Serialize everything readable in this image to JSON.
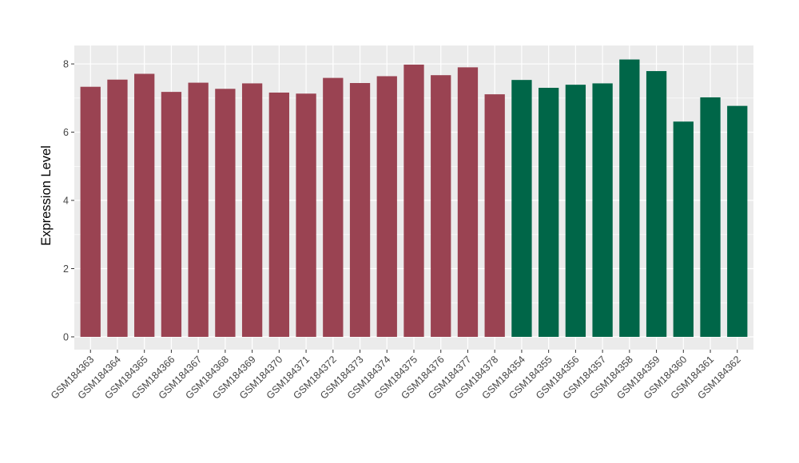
{
  "chart_data": {
    "type": "bar",
    "ylabel": "Expression Level",
    "xlabel": "",
    "categories": [
      "GSM184363",
      "GSM184364",
      "GSM184365",
      "GSM184366",
      "GSM184367",
      "GSM184368",
      "GSM184369",
      "GSM184370",
      "GSM184371",
      "GSM184372",
      "GSM184373",
      "GSM184374",
      "GSM184375",
      "GSM184376",
      "GSM184377",
      "GSM184378",
      "GSM184354",
      "GSM184355",
      "GSM184356",
      "GSM184357",
      "GSM184358",
      "GSM184359",
      "GSM184360",
      "GSM184361",
      "GSM184362"
    ],
    "values": [
      7.33,
      7.54,
      7.71,
      7.18,
      7.45,
      7.27,
      7.43,
      7.16,
      7.13,
      7.59,
      7.44,
      7.64,
      7.98,
      7.67,
      7.9,
      7.11,
      7.53,
      7.3,
      7.39,
      7.43,
      8.13,
      7.79,
      6.31,
      7.02,
      6.77
    ],
    "groups": [
      "maroon",
      "maroon",
      "maroon",
      "maroon",
      "maroon",
      "maroon",
      "maroon",
      "maroon",
      "maroon",
      "maroon",
      "maroon",
      "maroon",
      "maroon",
      "maroon",
      "maroon",
      "maroon",
      "green",
      "green",
      "green",
      "green",
      "green",
      "green",
      "green",
      "green",
      "green"
    ],
    "colors": {
      "maroon": "#9A4352",
      "green": "#006648",
      "panel_bg": "#EBEBEB",
      "grid": "#FFFFFF",
      "tick": "#333333",
      "tick_text": "#454545"
    },
    "baseline": 0,
    "ylim": [
      -0.375,
      8.54
    ],
    "yticks": [
      0,
      2,
      4,
      6,
      8
    ],
    "minor_yticks": [
      1,
      3,
      5,
      7
    ],
    "grid": true,
    "legend": "none",
    "x_label_angle": 45
  }
}
